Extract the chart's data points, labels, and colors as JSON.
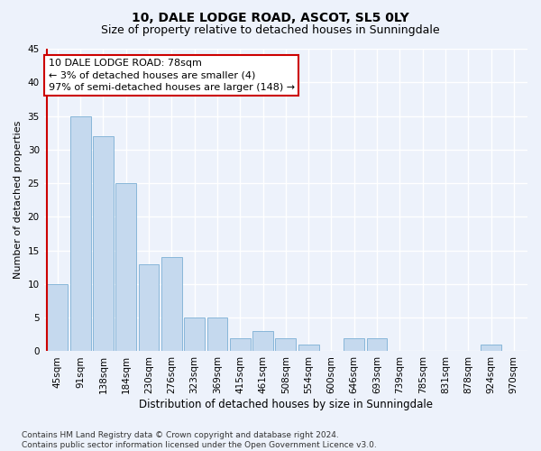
{
  "title": "10, DALE LODGE ROAD, ASCOT, SL5 0LY",
  "subtitle": "Size of property relative to detached houses in Sunningdale",
  "xlabel": "Distribution of detached houses by size in Sunningdale",
  "ylabel": "Number of detached properties",
  "categories": [
    "45sqm",
    "91sqm",
    "138sqm",
    "184sqm",
    "230sqm",
    "276sqm",
    "323sqm",
    "369sqm",
    "415sqm",
    "461sqm",
    "508sqm",
    "554sqm",
    "600sqm",
    "646sqm",
    "693sqm",
    "739sqm",
    "785sqm",
    "831sqm",
    "878sqm",
    "924sqm",
    "970sqm"
  ],
  "values": [
    10,
    35,
    32,
    25,
    13,
    14,
    5,
    5,
    2,
    3,
    2,
    1,
    0,
    2,
    2,
    0,
    0,
    0,
    0,
    1,
    0
  ],
  "bar_color": "#c5d9ee",
  "bar_edge_color": "#7bafd4",
  "vline_color": "#cc0000",
  "annotation_line1": "10 DALE LODGE ROAD: 78sqm",
  "annotation_line2": "← 3% of detached houses are smaller (4)",
  "annotation_line3": "97% of semi-detached houses are larger (148) →",
  "annotation_box_color": "#ffffff",
  "annotation_box_edge_color": "#cc0000",
  "ylim": [
    0,
    45
  ],
  "yticks": [
    0,
    5,
    10,
    15,
    20,
    25,
    30,
    35,
    40,
    45
  ],
  "background_color": "#edf2fb",
  "grid_color": "#ffffff",
  "footer": "Contains HM Land Registry data © Crown copyright and database right 2024.\nContains public sector information licensed under the Open Government Licence v3.0.",
  "title_fontsize": 10,
  "subtitle_fontsize": 9,
  "xlabel_fontsize": 8.5,
  "ylabel_fontsize": 8,
  "tick_fontsize": 7.5,
  "annotation_fontsize": 8,
  "footer_fontsize": 6.5
}
